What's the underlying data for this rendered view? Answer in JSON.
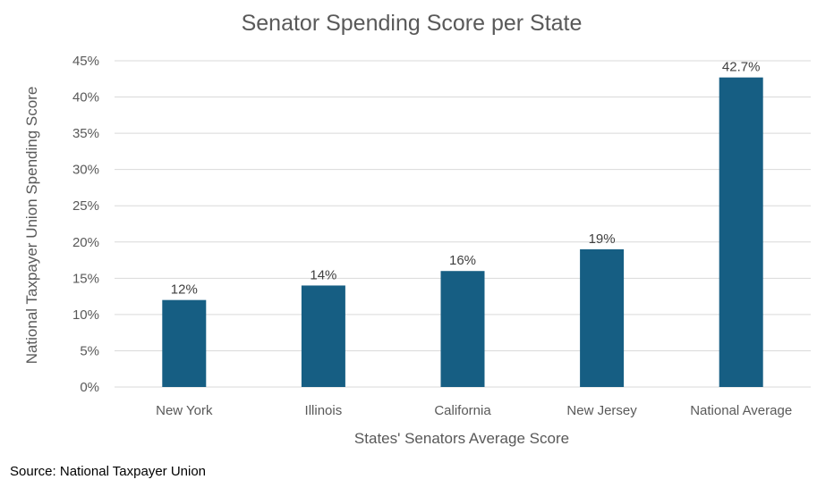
{
  "chart_data": {
    "type": "bar",
    "title": "Senator Spending Score per State",
    "xlabel": "States' Senators Average Score",
    "ylabel": "National Taxpayer Union Spending Score",
    "categories": [
      "New York",
      "Illinois",
      "California",
      "New Jersey",
      "National Average"
    ],
    "values": [
      12,
      14,
      16,
      19,
      42.7
    ],
    "data_labels": [
      "12%",
      "14%",
      "16%",
      "19%",
      "42.7%"
    ],
    "ylim": [
      0,
      45
    ],
    "yticks": [
      0,
      5,
      10,
      15,
      20,
      25,
      30,
      35,
      40,
      45
    ],
    "ytick_labels": [
      "0%",
      "5%",
      "10%",
      "15%",
      "20%",
      "25%",
      "30%",
      "35%",
      "40%",
      "45%"
    ],
    "grid": true,
    "legend": "none",
    "bar_color": "#165e83"
  },
  "source_note": "Source: National Taxpayer Union"
}
